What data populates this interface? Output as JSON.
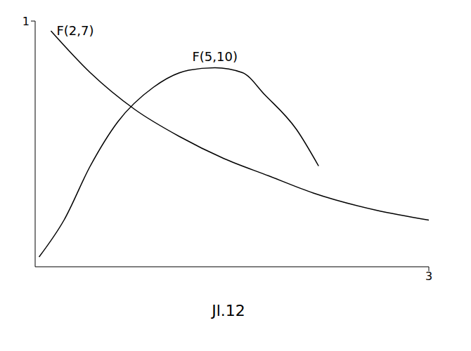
{
  "chart_data": {
    "type": "line",
    "caption": "Jl.12",
    "xlim": [
      0,
      3
    ],
    "xticks": [
      3
    ],
    "ylim": [
      0,
      1
    ],
    "yticks": [
      1
    ],
    "grid": false,
    "series": [
      {
        "name": "F(2,7)",
        "color": "#000000",
        "x": [
          0.12,
          0.42,
          0.76,
          1.1,
          1.44,
          1.78,
          2.12,
          2.6,
          3.0
        ],
        "values": [
          0.96,
          0.79,
          0.64,
          0.53,
          0.44,
          0.37,
          0.3,
          0.23,
          0.19
        ]
      },
      {
        "name": "F(5,10)",
        "color": "#000000",
        "x": [
          0.03,
          0.22,
          0.42,
          0.63,
          0.9,
          1.17,
          1.37,
          1.58,
          1.75,
          1.99,
          2.16
        ],
        "values": [
          0.04,
          0.19,
          0.41,
          0.59,
          0.73,
          0.8,
          0.81,
          0.79,
          0.7,
          0.56,
          0.41
        ]
      }
    ]
  }
}
